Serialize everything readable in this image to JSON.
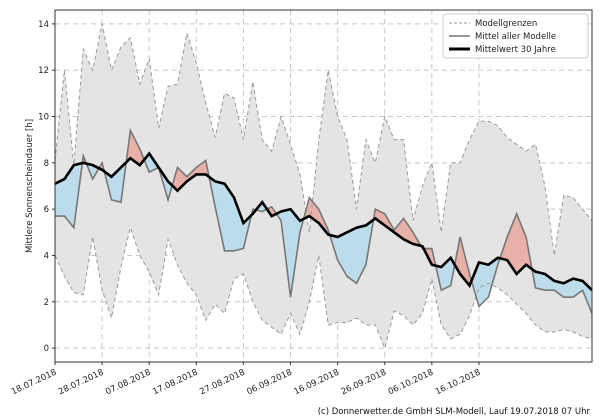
{
  "chart_data": {
    "type": "area",
    "title": "",
    "xlabel": "",
    "ylabel": "Mittlere Sonnenscheindauer [h]",
    "ylim": [
      -0.6,
      14.6
    ],
    "yticks": [
      0,
      2,
      4,
      6,
      8,
      10,
      12,
      14
    ],
    "xlim_days": [
      0,
      114
    ],
    "xtick_labels": [
      "18.07.2018",
      "28.07.2018",
      "07.08.2018",
      "17.08.2018",
      "27.08.2018",
      "06.09.2018",
      "16.09.2018",
      "26.09.2018",
      "06.10.2018",
      "16.10.2018"
    ],
    "xtick_days": [
      0,
      10,
      20,
      30,
      40,
      50,
      60,
      70,
      80,
      90
    ],
    "grid": true,
    "legend_position": "top-right",
    "legend": [
      "Modellgrenzen",
      "Mittel aller Modelle",
      "Mittelwert 30 Jahre"
    ],
    "x_days": [
      0,
      2,
      4,
      6,
      8,
      10,
      12,
      14,
      16,
      18,
      20,
      22,
      24,
      26,
      28,
      30,
      32,
      34,
      36,
      38,
      40,
      42,
      44,
      46,
      48,
      50,
      52,
      54,
      56,
      58,
      60,
      62,
      64,
      66,
      68,
      70,
      72,
      74,
      76,
      78,
      80,
      82,
      84,
      86,
      88,
      90,
      92,
      94,
      96,
      98,
      100,
      102,
      104,
      106,
      108,
      110,
      112,
      114
    ],
    "series": [
      {
        "name": "Modellgrenzen (oben)",
        "values": [
          8.1,
          12,
          7.9,
          12.9,
          12,
          14,
          12,
          13,
          13.4,
          11.4,
          12.5,
          9.5,
          11.3,
          11.4,
          13.6,
          12.3,
          10.6,
          9.1,
          11,
          10.8,
          9,
          11.5,
          9,
          8.5,
          10,
          8.8,
          7.5,
          5,
          9,
          12,
          10,
          9,
          6,
          9,
          8,
          10,
          9,
          9,
          5.5,
          7,
          8,
          5,
          8,
          8,
          9,
          9.8,
          9.8,
          9.6,
          9.1,
          8.8,
          8.5,
          8.8,
          7,
          4,
          6.6,
          6.5,
          6,
          5.5
        ]
      },
      {
        "name": "Modellgrenzen (unten)",
        "values": [
          4,
          3.1,
          2.4,
          2.3,
          4.8,
          2.5,
          1.3,
          3.5,
          5.2,
          4,
          3.3,
          2.3,
          4.7,
          3.6,
          2.8,
          2.3,
          1.2,
          1.9,
          1.5,
          3,
          3.2,
          2,
          1.2,
          0.9,
          0.6,
          1.5,
          0.6,
          2,
          4,
          1,
          1.1,
          1.1,
          1.3,
          1,
          1,
          0,
          1.6,
          1.4,
          1,
          1.5,
          3,
          1,
          0.4,
          0.6,
          1.4,
          2.6,
          2.8,
          2.6,
          2.3,
          1.9,
          1.5,
          1,
          0.7,
          0.7,
          0.8,
          0.7,
          0.5,
          0.4
        ]
      },
      {
        "name": "Mittel aller Modelle",
        "values": [
          5.7,
          5.7,
          5.2,
          8.3,
          7.3,
          8,
          6.4,
          6.3,
          9.4,
          8.6,
          7.6,
          7.8,
          6.4,
          7.8,
          7.4,
          7.8,
          8.1,
          6.1,
          4.2,
          4.2,
          4.3,
          6,
          5.9,
          6.1,
          5.5,
          2.2,
          5,
          6.5,
          6,
          5.1,
          3.8,
          3.1,
          2.8,
          3.6,
          6,
          5.8,
          5.1,
          5.6,
          5,
          4.3,
          4.3,
          2.5,
          2.7,
          4.8,
          3.2,
          1.8,
          2.2,
          3.6,
          4.8,
          5.8,
          4.8,
          2.6,
          2.5,
          2.5,
          2.2,
          2.2,
          2.5,
          1.5
        ]
      },
      {
        "name": "Mittelwert 30 Jahre",
        "values": [
          7.1,
          7.3,
          7.9,
          8,
          7.9,
          7.7,
          7.4,
          7.8,
          8.2,
          7.9,
          8.4,
          7.8,
          7.2,
          6.8,
          7.2,
          7.5,
          7.5,
          7.2,
          7.1,
          6.5,
          5.4,
          5.8,
          6.3,
          5.7,
          5.9,
          6,
          5.5,
          5.7,
          5.4,
          4.9,
          4.8,
          5,
          5.2,
          5.3,
          5.6,
          5.3,
          5,
          4.7,
          4.5,
          4.4,
          3.6,
          3.5,
          3.9,
          3.2,
          2.7,
          3.7,
          3.6,
          3.9,
          3.8,
          3.2,
          3.6,
          3.3,
          3.2,
          2.9,
          2.8,
          3,
          2.9,
          2.5
        ]
      }
    ],
    "colors": {
      "band": "#e4e4e4",
      "above": "#e8b0a6",
      "below": "#bcdceb",
      "model_mean": "#777777",
      "long_term": "#000000",
      "bound_line": "#9a9a9a"
    }
  },
  "credit": "(c) Donnerwetter.de GmbH SLM-Modell, Lauf 19.07.2018 07 Uhr"
}
